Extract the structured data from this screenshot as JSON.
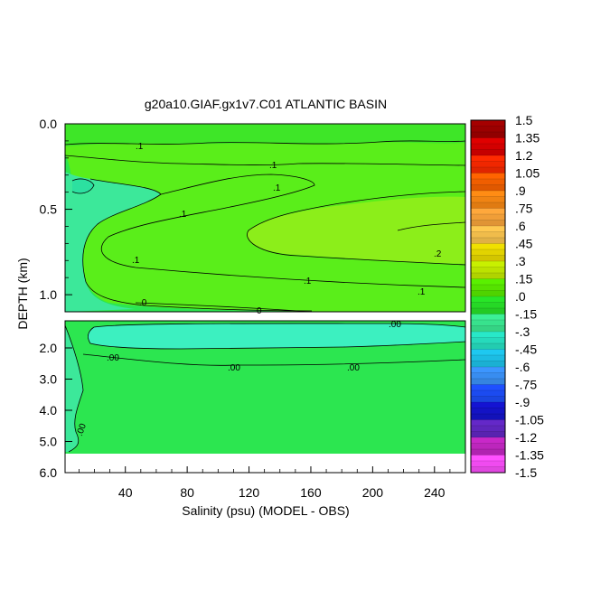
{
  "chart_data": {
    "type": "heatmap",
    "title": "g20a10.GIAF.gx1v7.C01 ATLANTIC BASIN",
    "xlabel": "Salinity (psu) (MODEL - OBS)",
    "ylabel": "DEPTH (km)",
    "xlim": [
      1,
      260
    ],
    "x_ticks": [
      "40",
      "80",
      "120",
      "160",
      "200",
      "240"
    ],
    "panels": [
      {
        "name": "upper",
        "ylim": [
          0.0,
          1.1
        ],
        "y_ticks": [
          "0.0",
          "0.5",
          "1.0"
        ],
        "contour_labels": [
          ".1",
          ".1",
          ".1",
          ".1",
          ".1",
          ".1",
          ".1",
          ".2",
          ".0",
          "0"
        ]
      },
      {
        "name": "lower",
        "ylim": [
          1.1,
          6.0
        ],
        "y_ticks": [
          "2.0",
          "3.0",
          "4.0",
          "5.0",
          "6.0"
        ],
        "contour_labels": [
          ".00",
          ".00",
          ".00",
          ".00",
          ".00"
        ]
      }
    ],
    "colorbar": {
      "labels": [
        "1.5",
        "1.35",
        "1.2",
        "1.05",
        ".9",
        ".75",
        ".6",
        ".45",
        ".3",
        ".15",
        ".0",
        "-.15",
        "-.3",
        "-.45",
        "-.6",
        "-.75",
        "-.9",
        "-1.05",
        "-1.2",
        "-1.35",
        "-1.5"
      ],
      "colors": [
        "#a50000",
        "#e00000",
        "#ff2a00",
        "#ff6400",
        "#ff8c14",
        "#ffa83c",
        "#ffc850",
        "#f0e000",
        "#c8f000",
        "#5af000",
        "#28e628",
        "#3cf096",
        "#28e8c8",
        "#1ec8f0",
        "#3c96ff",
        "#1e50ff",
        "#1414d2",
        "#6428c8",
        "#c828c8",
        "#ff50ff",
        "#a0a0a0"
      ]
    }
  }
}
